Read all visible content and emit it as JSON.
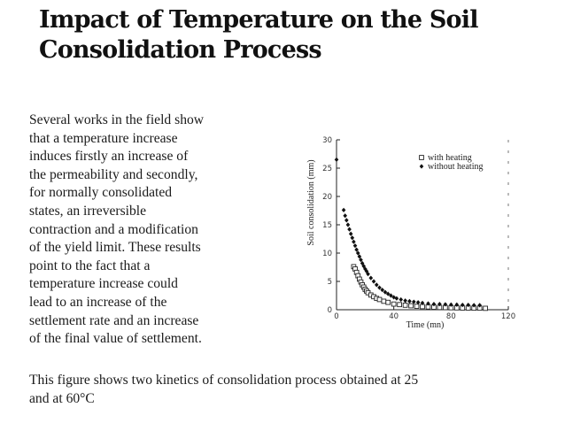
{
  "slide": {
    "title_lines": [
      "Impact of Temperature on the Soil",
      "Consolidation Process"
    ],
    "body_lines": [
      "Several works in the field show",
      "that a temperature increase",
      "induces firstly an increase of",
      "the permeability and secondly,",
      "for normally consolidated",
      "states, an irreversible",
      "contraction and a modification",
      "of the yield limit. These results",
      "point to the fact that a",
      "temperature increase could",
      "lead to an increase of the",
      "settlement rate and an increase",
      "of the final value of settlement."
    ],
    "caption_lines": [
      "This figure shows two kinetics of consolidation process obtained at 25",
      "and at 60°C"
    ]
  },
  "chart_data": {
    "type": "scatter",
    "title": "",
    "xlabel": "Time (mn)",
    "ylabel": "Soil consolidation (mm)",
    "xlim": [
      0,
      120
    ],
    "ylim": [
      0,
      30
    ],
    "xticks": [
      0,
      40,
      80,
      120
    ],
    "yticks": [
      0,
      5,
      10,
      15,
      20,
      25,
      30
    ],
    "legend_position": "top-right",
    "series": [
      {
        "name": "with heating",
        "marker": "open-square",
        "x": [
          12,
          13,
          14,
          15,
          16,
          17,
          18,
          19,
          20,
          21,
          22,
          24,
          26,
          28,
          30,
          33,
          36,
          40,
          44,
          48,
          52,
          56,
          60,
          64,
          68,
          72,
          76,
          80,
          84,
          88,
          92,
          96,
          100,
          104
        ],
        "y": [
          7.6,
          7.2,
          6.6,
          6.0,
          5.4,
          4.9,
          4.4,
          4.0,
          3.6,
          3.3,
          3.0,
          2.6,
          2.3,
          2.0,
          1.8,
          1.5,
          1.3,
          1.0,
          0.9,
          0.8,
          0.7,
          0.6,
          0.55,
          0.5,
          0.45,
          0.4,
          0.38,
          0.35,
          0.33,
          0.3,
          0.3,
          0.28,
          0.28,
          0.25
        ]
      },
      {
        "name": "without heating",
        "marker": "filled-diamond",
        "x": [
          0,
          5,
          6,
          7,
          8,
          9,
          10,
          11,
          12,
          13,
          14,
          15,
          16,
          17,
          18,
          19,
          20,
          21,
          22,
          24,
          26,
          28,
          30,
          32,
          34,
          36,
          38,
          40,
          42,
          45,
          48,
          51,
          54,
          57,
          60,
          64,
          68,
          72,
          76,
          80,
          84,
          88,
          92,
          96,
          100
        ],
        "y": [
          26.5,
          17.6,
          16.6,
          15.8,
          15.0,
          14.2,
          13.4,
          12.7,
          12.0,
          11.3,
          10.6,
          10.0,
          9.4,
          8.8,
          8.2,
          7.7,
          7.2,
          6.8,
          6.3,
          5.6,
          5.0,
          4.4,
          3.9,
          3.5,
          3.1,
          2.8,
          2.5,
          2.2,
          2.0,
          1.8,
          1.6,
          1.5,
          1.4,
          1.3,
          1.2,
          1.1,
          1.0,
          1.0,
          0.95,
          0.9,
          0.9,
          0.85,
          0.85,
          0.8,
          0.8
        ]
      }
    ]
  }
}
